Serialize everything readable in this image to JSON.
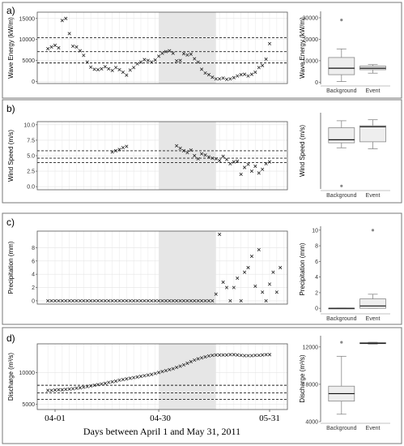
{
  "xlabel": "Days between April 1 and May 31, 2011",
  "x_ticks": [
    "04-01",
    "04-30",
    "05-31"
  ],
  "event_window": [
    "04-30",
    "05-16"
  ],
  "panels": [
    {
      "label": "a)",
      "chart_data": {
        "type": "scatter",
        "ylabel": "Wave Energy (kW/m)",
        "ylim": [
          -500,
          16500
        ],
        "yticks": [
          0,
          5000,
          10000,
          15000
        ],
        "thresholds": [
          4400,
          7100,
          10400
        ],
        "values": [
          7800,
          8200,
          8600,
          8000,
          14500,
          15000,
          11400,
          8400,
          8200,
          7300,
          6200,
          4600,
          3400,
          2900,
          2800,
          3000,
          3500,
          3000,
          2600,
          3300,
          2800,
          2200,
          1500,
          2700,
          3300,
          4200,
          4600,
          5200,
          5000,
          4600,
          5100,
          6000,
          6700,
          7100,
          7300,
          6700,
          4900,
          5000,
          6600,
          6300,
          6500,
          5400,
          4600,
          2900,
          2000,
          1600,
          1000,
          600,
          600,
          800,
          500,
          600,
          900,
          1300,
          1600,
          1700,
          1300,
          1700,
          2200,
          3300,
          3800,
          5300,
          9000
        ]
      },
      "box": {
        "ylabel": "Wave Energy (kW/m)",
        "ylim": [
          -1000,
          33000
        ],
        "yticks": [
          0,
          10000,
          20000,
          30000
        ],
        "categories": [
          "Background",
          "Event"
        ],
        "stats": [
          {
            "min": 300,
            "q1": 3500,
            "median": 6500,
            "q3": 11500,
            "max": 15500,
            "outliers": [
              29000
            ]
          },
          {
            "min": 4200,
            "q1": 5800,
            "median": 6500,
            "q3": 7500,
            "max": 8200,
            "outliers": []
          }
        ]
      }
    },
    {
      "label": "b)",
      "chart_data": {
        "type": "scatter",
        "ylabel": "Wind Speed (m/s)",
        "ylim": [
          -0.5,
          10.5
        ],
        "yticks": [
          0.0,
          2.5,
          5.0,
          7.5,
          10.0
        ],
        "thresholds": [
          3.9,
          4.6,
          5.8
        ],
        "values": [
          null,
          null,
          null,
          null,
          null,
          null,
          null,
          null,
          null,
          null,
          null,
          null,
          null,
          null,
          null,
          null,
          null,
          null,
          5.6,
          5.8,
          6.0,
          6.3,
          6.5,
          null,
          null,
          null,
          null,
          null,
          null,
          null,
          null,
          null,
          null,
          null,
          null,
          null,
          6.6,
          6.2,
          5.8,
          5.5,
          5.9,
          5.0,
          4.5,
          5.3,
          5.1,
          4.8,
          4.6,
          4.5,
          4.2,
          4.9,
          4.4,
          3.7,
          4.0,
          4.1,
          2.0,
          3.1,
          3.6,
          2.5,
          3.3,
          2.2,
          2.8,
          3.7,
          4.0
        ]
      },
      "box": {
        "ylabel": "Wind Speed (m/s)",
        "ylim": [
          -0.3,
          7.3
        ],
        "yticks": [],
        "categories": [
          "Background",
          "Event"
        ],
        "stats": [
          {
            "min": 3.8,
            "q1": 4.3,
            "median": 4.6,
            "q3": 5.8,
            "max": 6.5,
            "outliers": [
              0.0
            ]
          },
          {
            "min": 3.7,
            "q1": 4.4,
            "median": 5.9,
            "q3": 6.0,
            "max": 6.6,
            "outliers": []
          }
        ]
      }
    },
    {
      "label": "c)",
      "chart_data": {
        "type": "scatter",
        "ylabel": "Precipitation (mm)",
        "ylim": [
          -0.5,
          10.5
        ],
        "yticks": [
          0,
          2,
          4,
          6,
          8
        ],
        "thresholds": [],
        "values": [
          0,
          0,
          0,
          0,
          0,
          0,
          0,
          0,
          0,
          0,
          0,
          0,
          0,
          0,
          0,
          0,
          0,
          0,
          0,
          0,
          0,
          0,
          0,
          0,
          0,
          0,
          0,
          0,
          0,
          0,
          0,
          0,
          0,
          0,
          0,
          0,
          0,
          0,
          0,
          0,
          0,
          0,
          0,
          0,
          0,
          0,
          0,
          1.0,
          10.0,
          2.8,
          2.0,
          0.0,
          2.0,
          3.4,
          0.0,
          4.3,
          5.0,
          6.7,
          2.2,
          7.7,
          1.3,
          0.0,
          2.5,
          4.3,
          1.3,
          5.0
        ]
      },
      "box": {
        "ylabel": "Precipitation (mm)",
        "ylim": [
          -0.5,
          10.5
        ],
        "yticks": [
          0,
          2,
          4,
          6,
          8,
          10
        ],
        "categories": [
          "Background",
          "Event"
        ],
        "stats": [
          {
            "min": 0,
            "q1": 0,
            "median": 0,
            "q3": 0,
            "max": 0,
            "outliers": []
          },
          {
            "min": 0,
            "q1": 0,
            "median": 0.3,
            "q3": 1.2,
            "max": 1.8,
            "outliers": [
              10.0
            ]
          }
        ]
      }
    },
    {
      "label": "d)",
      "chart_data": {
        "type": "scatter",
        "ylabel": "Discharge (m³/s)",
        "ylim": [
          4200,
          14500
        ],
        "yticks": [
          5000,
          10000
        ],
        "thresholds": [
          5800,
          6800,
          8000
        ],
        "values": [
          7200,
          7200,
          7250,
          7300,
          7300,
          7350,
          7400,
          7450,
          7550,
          7600,
          7700,
          7800,
          7900,
          8000,
          8100,
          8200,
          8300,
          8450,
          8550,
          8650,
          8800,
          8900,
          9000,
          9100,
          9200,
          9300,
          9400,
          9500,
          9600,
          9700,
          9850,
          10000,
          10150,
          10300,
          10450,
          10600,
          10800,
          11000,
          11200,
          11450,
          11700,
          11950,
          12150,
          12300,
          12450,
          12600,
          12700,
          12750,
          12750,
          12750,
          12750,
          12800,
          12800,
          12750,
          12700,
          12650,
          12650,
          12650,
          12700,
          12700,
          12750,
          12800,
          12800
        ]
      },
      "box": {
        "ylabel": "Discharge (m³/s)",
        "ylim": [
          4000,
          13200
        ],
        "yticks": [
          4000,
          8000,
          12000
        ],
        "categories": [
          "Background",
          "Event"
        ],
        "stats": [
          {
            "min": 4800,
            "q1": 6200,
            "median": 7000,
            "q3": 7800,
            "max": 11000,
            "outliers": [
              12500
            ]
          },
          {
            "min": 12300,
            "q1": 12350,
            "median": 12400,
            "q3": 12450,
            "max": 12500,
            "outliers": []
          }
        ]
      }
    }
  ]
}
